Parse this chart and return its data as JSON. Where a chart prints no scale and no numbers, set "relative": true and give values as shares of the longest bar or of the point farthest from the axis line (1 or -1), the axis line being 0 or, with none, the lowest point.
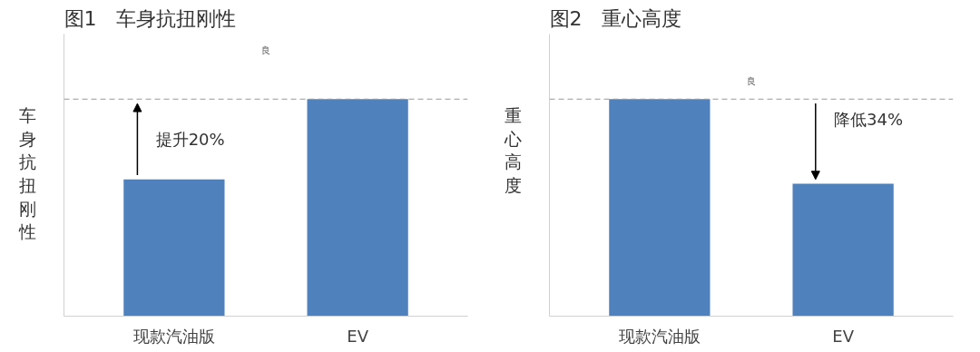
{
  "chart_data": [
    {
      "type": "bar",
      "title": "图1　车身抗扭刚性",
      "ylabel": "车身抗扭刚性",
      "categories": [
        "现款汽油版",
        "EV"
      ],
      "values": [
        0.63,
        1
      ],
      "color": "#4f81bd",
      "relative": true,
      "grid": false,
      "ref_lines": [
        {
          "axis": "y",
          "value": 1,
          "color": "#999999",
          "line_style": "dashed"
        }
      ],
      "annotations": [
        "提升20%",
        "良"
      ]
    },
    {
      "type": "bar",
      "title": "图2　重心高度",
      "ylabel": "重心高度",
      "categories": [
        "现款汽油版",
        "EV"
      ],
      "values": [
        1,
        0.61
      ],
      "color": "#4f81bd",
      "relative": true,
      "grid": false,
      "ref_lines": [
        {
          "axis": "y",
          "value": 1,
          "color": "#999999",
          "line_style": "dashed"
        }
      ],
      "annotations": [
        "降低34%",
        "良"
      ]
    }
  ]
}
